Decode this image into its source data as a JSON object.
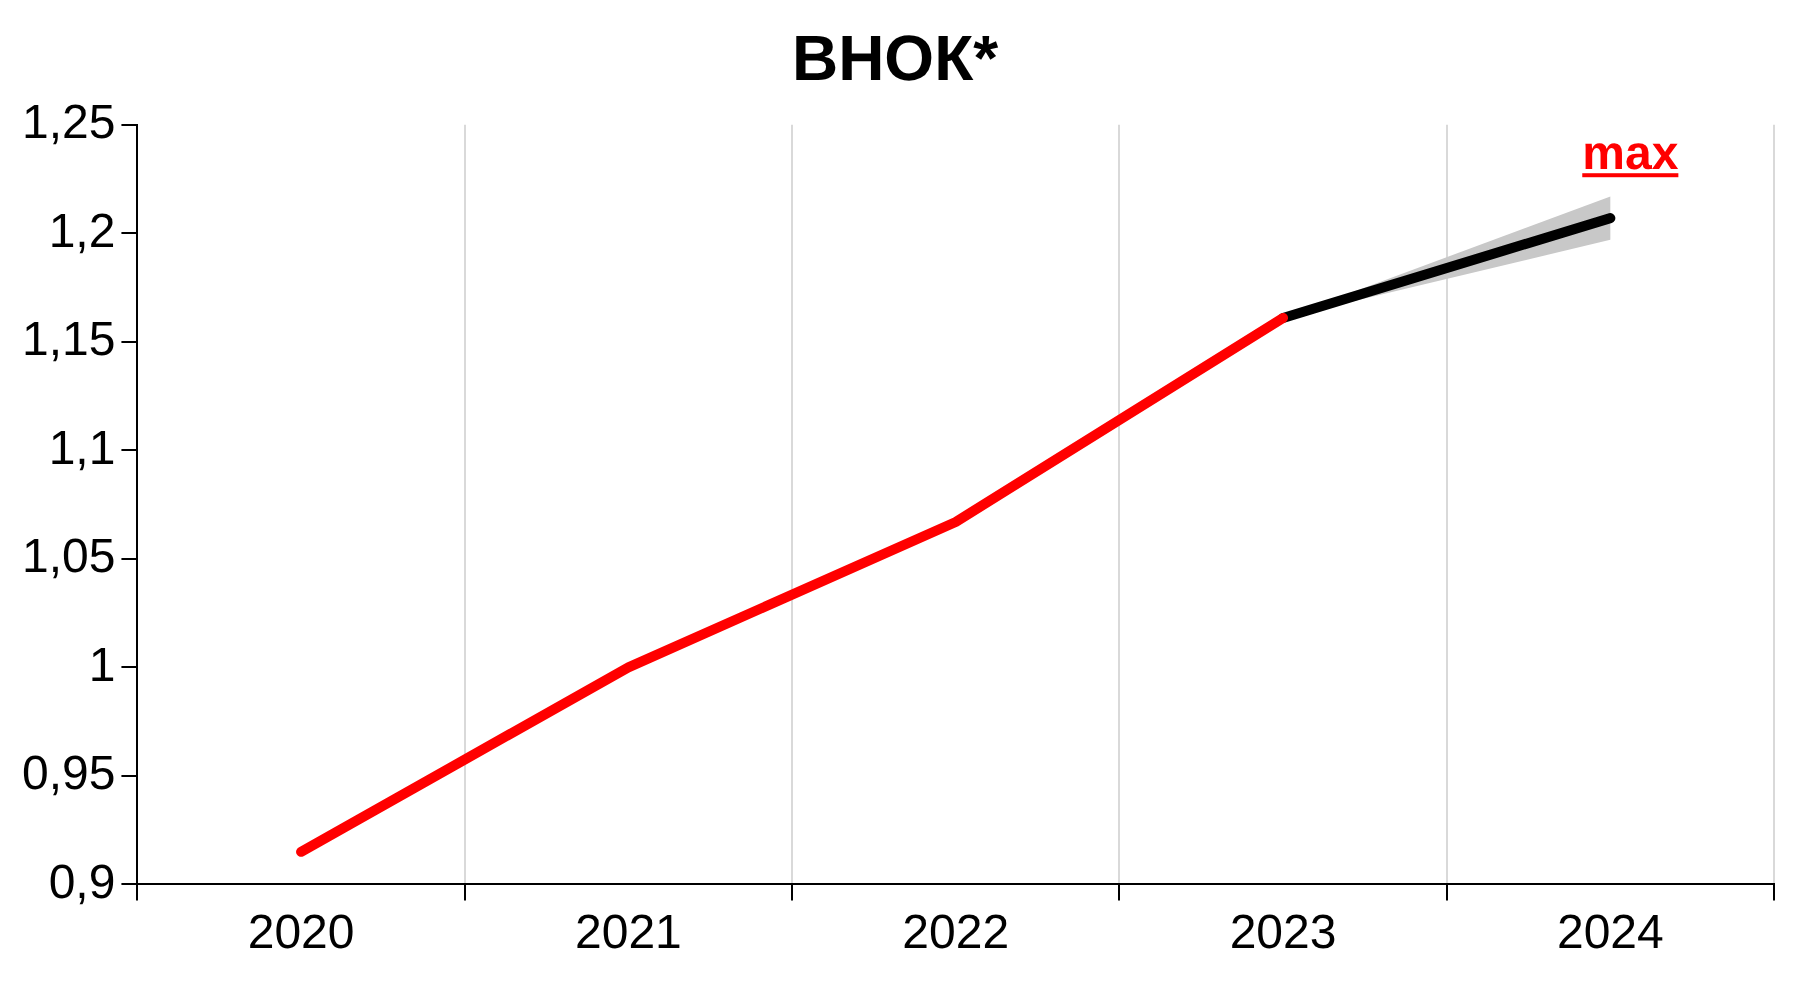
{
  "chart_data": {
    "type": "line",
    "title": "ВНОК*",
    "categories": [
      "2020",
      "2021",
      "2022",
      "2023",
      "2024"
    ],
    "series": [
      {
        "color": "#ff0000",
        "values": [
          0.915,
          1.0,
          1.067,
          1.161,
          null
        ]
      },
      {
        "color": "#000000",
        "values": [
          null,
          null,
          null,
          1.161,
          1.207
        ],
        "lower": [
          null,
          null,
          null,
          1.161,
          1.197
        ],
        "upper": [
          null,
          null,
          null,
          1.161,
          1.217
        ]
      }
    ],
    "ylim": [
      0.9,
      1.25
    ],
    "yticks": [
      {
        "value": 0.9,
        "label": "0,9"
      },
      {
        "value": 0.95,
        "label": "0,95"
      },
      1,
      {
        "value": 1.05,
        "label": "1,05"
      },
      {
        "value": 1.1,
        "label": "1,1"
      },
      {
        "value": 1.15,
        "label": "1,15"
      },
      {
        "value": 1.2,
        "label": "1,2"
      },
      {
        "value": 1.25,
        "label": "1,25"
      }
    ],
    "annotations": [
      {
        "text": "max",
        "x": "2024",
        "y": 1.207
      }
    ],
    "grid": "x",
    "legend": false,
    "marker": "none",
    "line_style": "solid"
  }
}
